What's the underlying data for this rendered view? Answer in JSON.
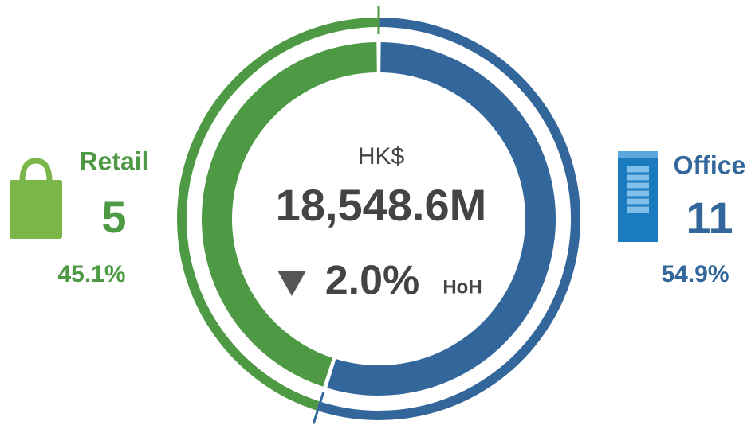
{
  "chart_data": {
    "type": "donut",
    "categories": [
      "Retail",
      "Office"
    ],
    "values": [
      45.1,
      54.9
    ],
    "value_labels": [
      "45.1%",
      "54.9%"
    ],
    "counts": [
      5,
      11
    ],
    "colors": [
      "#4e9a44",
      "#33669a"
    ],
    "unit": "HK$",
    "total": "18,548.6M",
    "change": "2.0%",
    "change_period": "HoH"
  }
}
